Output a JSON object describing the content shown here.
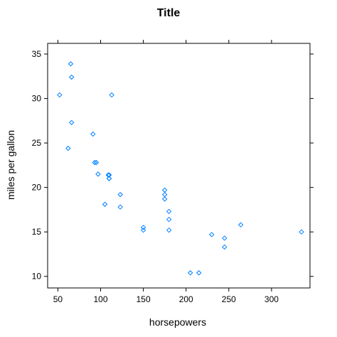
{
  "chart_data": {
    "type": "scatter",
    "title": "Title",
    "xlabel": "horsepowers",
    "ylabel": "miles per gallon",
    "xlim": [
      38,
      345
    ],
    "ylim": [
      8.7,
      36.2
    ],
    "xticks": [
      50,
      100,
      150,
      200,
      250,
      300
    ],
    "yticks": [
      10,
      15,
      20,
      25,
      30,
      35
    ],
    "x_tick_labels": [
      "50",
      "100",
      "150",
      "200",
      "250",
      "300"
    ],
    "y_tick_labels": [
      "10",
      "15",
      "20",
      "25",
      "30",
      "35"
    ],
    "grid": false,
    "marker": "diamond",
    "marker_color": "#0080ff",
    "series": [
      {
        "x": [
          110,
          110,
          93,
          110,
          175,
          105,
          245,
          62,
          95,
          123,
          123,
          180,
          180,
          180,
          205,
          215,
          230,
          66,
          52,
          65,
          97,
          150,
          150,
          245,
          175,
          66,
          91,
          113,
          264,
          175,
          335,
          109
        ],
        "y": [
          21.0,
          21.0,
          22.8,
          21.4,
          18.7,
          18.1,
          14.3,
          24.4,
          22.8,
          19.2,
          17.8,
          16.4,
          17.3,
          15.2,
          10.4,
          10.4,
          14.7,
          32.4,
          30.4,
          33.9,
          21.5,
          15.5,
          15.2,
          13.3,
          19.2,
          27.3,
          26.0,
          30.4,
          15.8,
          19.7,
          15.0,
          21.4
        ]
      }
    ]
  }
}
